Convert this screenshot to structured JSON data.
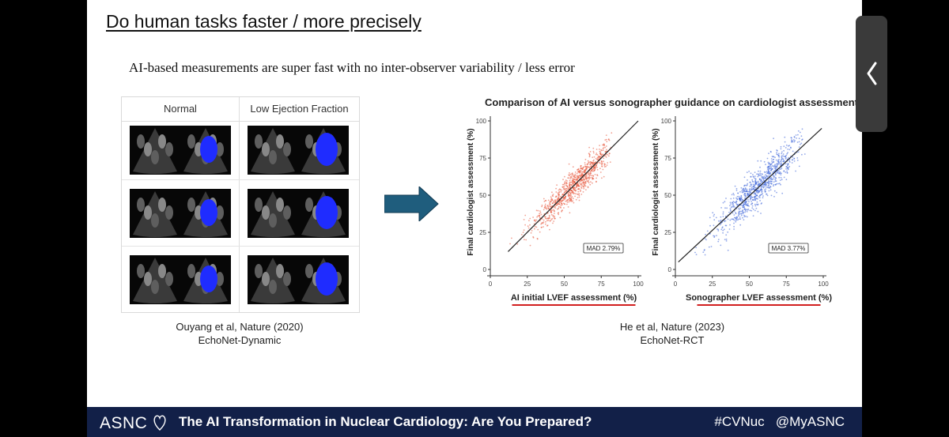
{
  "slide": {
    "title": "Do human tasks faster / more precisely",
    "subtitle": "AI-based measurements are super fast with no inter-observer variability / less error"
  },
  "echo_panel": {
    "column_headers": [
      "Normal",
      "Low Ejection Fraction"
    ],
    "caption_line1": "Ouyang et al, Nature (2020)",
    "caption_line2": "EchoNet-Dynamic",
    "overlay_color": "#1f2cff"
  },
  "arrow": {
    "color": "#1f5d7d"
  },
  "chart_caption": {
    "line1": "He et al, Nature (2023)",
    "line2": "EchoNet-RCT"
  },
  "chart_data": [
    {
      "type": "scatter",
      "title": "Comparison of AI versus sonographer guidance on cardiologist assessment.",
      "xlabel": "AI initial LVEF assessment (%)",
      "ylabel": "Final cardiologist assessment (%)",
      "xlim": [
        0,
        100
      ],
      "ylim": [
        0,
        100
      ],
      "xticks": [
        0,
        25,
        50,
        75,
        100
      ],
      "yticks": [
        0,
        25,
        50,
        75,
        100
      ],
      "point_color": "#e8553a",
      "annotation": "MAD 2.79%",
      "reference_line": [
        [
          12,
          12
        ],
        [
          100,
          100
        ]
      ],
      "cloud": {
        "x_center": 57,
        "x_spread": 14,
        "noise": 5.5,
        "x_min": 12,
        "x_max": 82
      }
    },
    {
      "type": "scatter",
      "xlabel": "Sonographer LVEF assessment (%)",
      "ylabel": "Final cardiologist assessment (%)",
      "xlim": [
        0,
        100
      ],
      "ylim": [
        0,
        100
      ],
      "xticks": [
        0,
        25,
        50,
        75,
        100
      ],
      "yticks": [
        0,
        25,
        50,
        75,
        100
      ],
      "point_color": "#3a63d8",
      "annotation": "MAD 3.77%",
      "reference_line": [
        [
          2,
          5
        ],
        [
          99,
          95
        ]
      ],
      "cloud": {
        "x_center": 57,
        "x_spread": 15,
        "noise": 6.5,
        "x_min": 5,
        "x_max": 88
      }
    }
  ],
  "footer": {
    "logo": "ASNC",
    "talk_title": "The AI Transformation in Nuclear Cardiology: Are You Prepared?",
    "hashtags": "#CVNuc   @MyASNC",
    "bg_color": "#122048"
  },
  "side_tab": {
    "icon": "chevron-left-icon"
  }
}
